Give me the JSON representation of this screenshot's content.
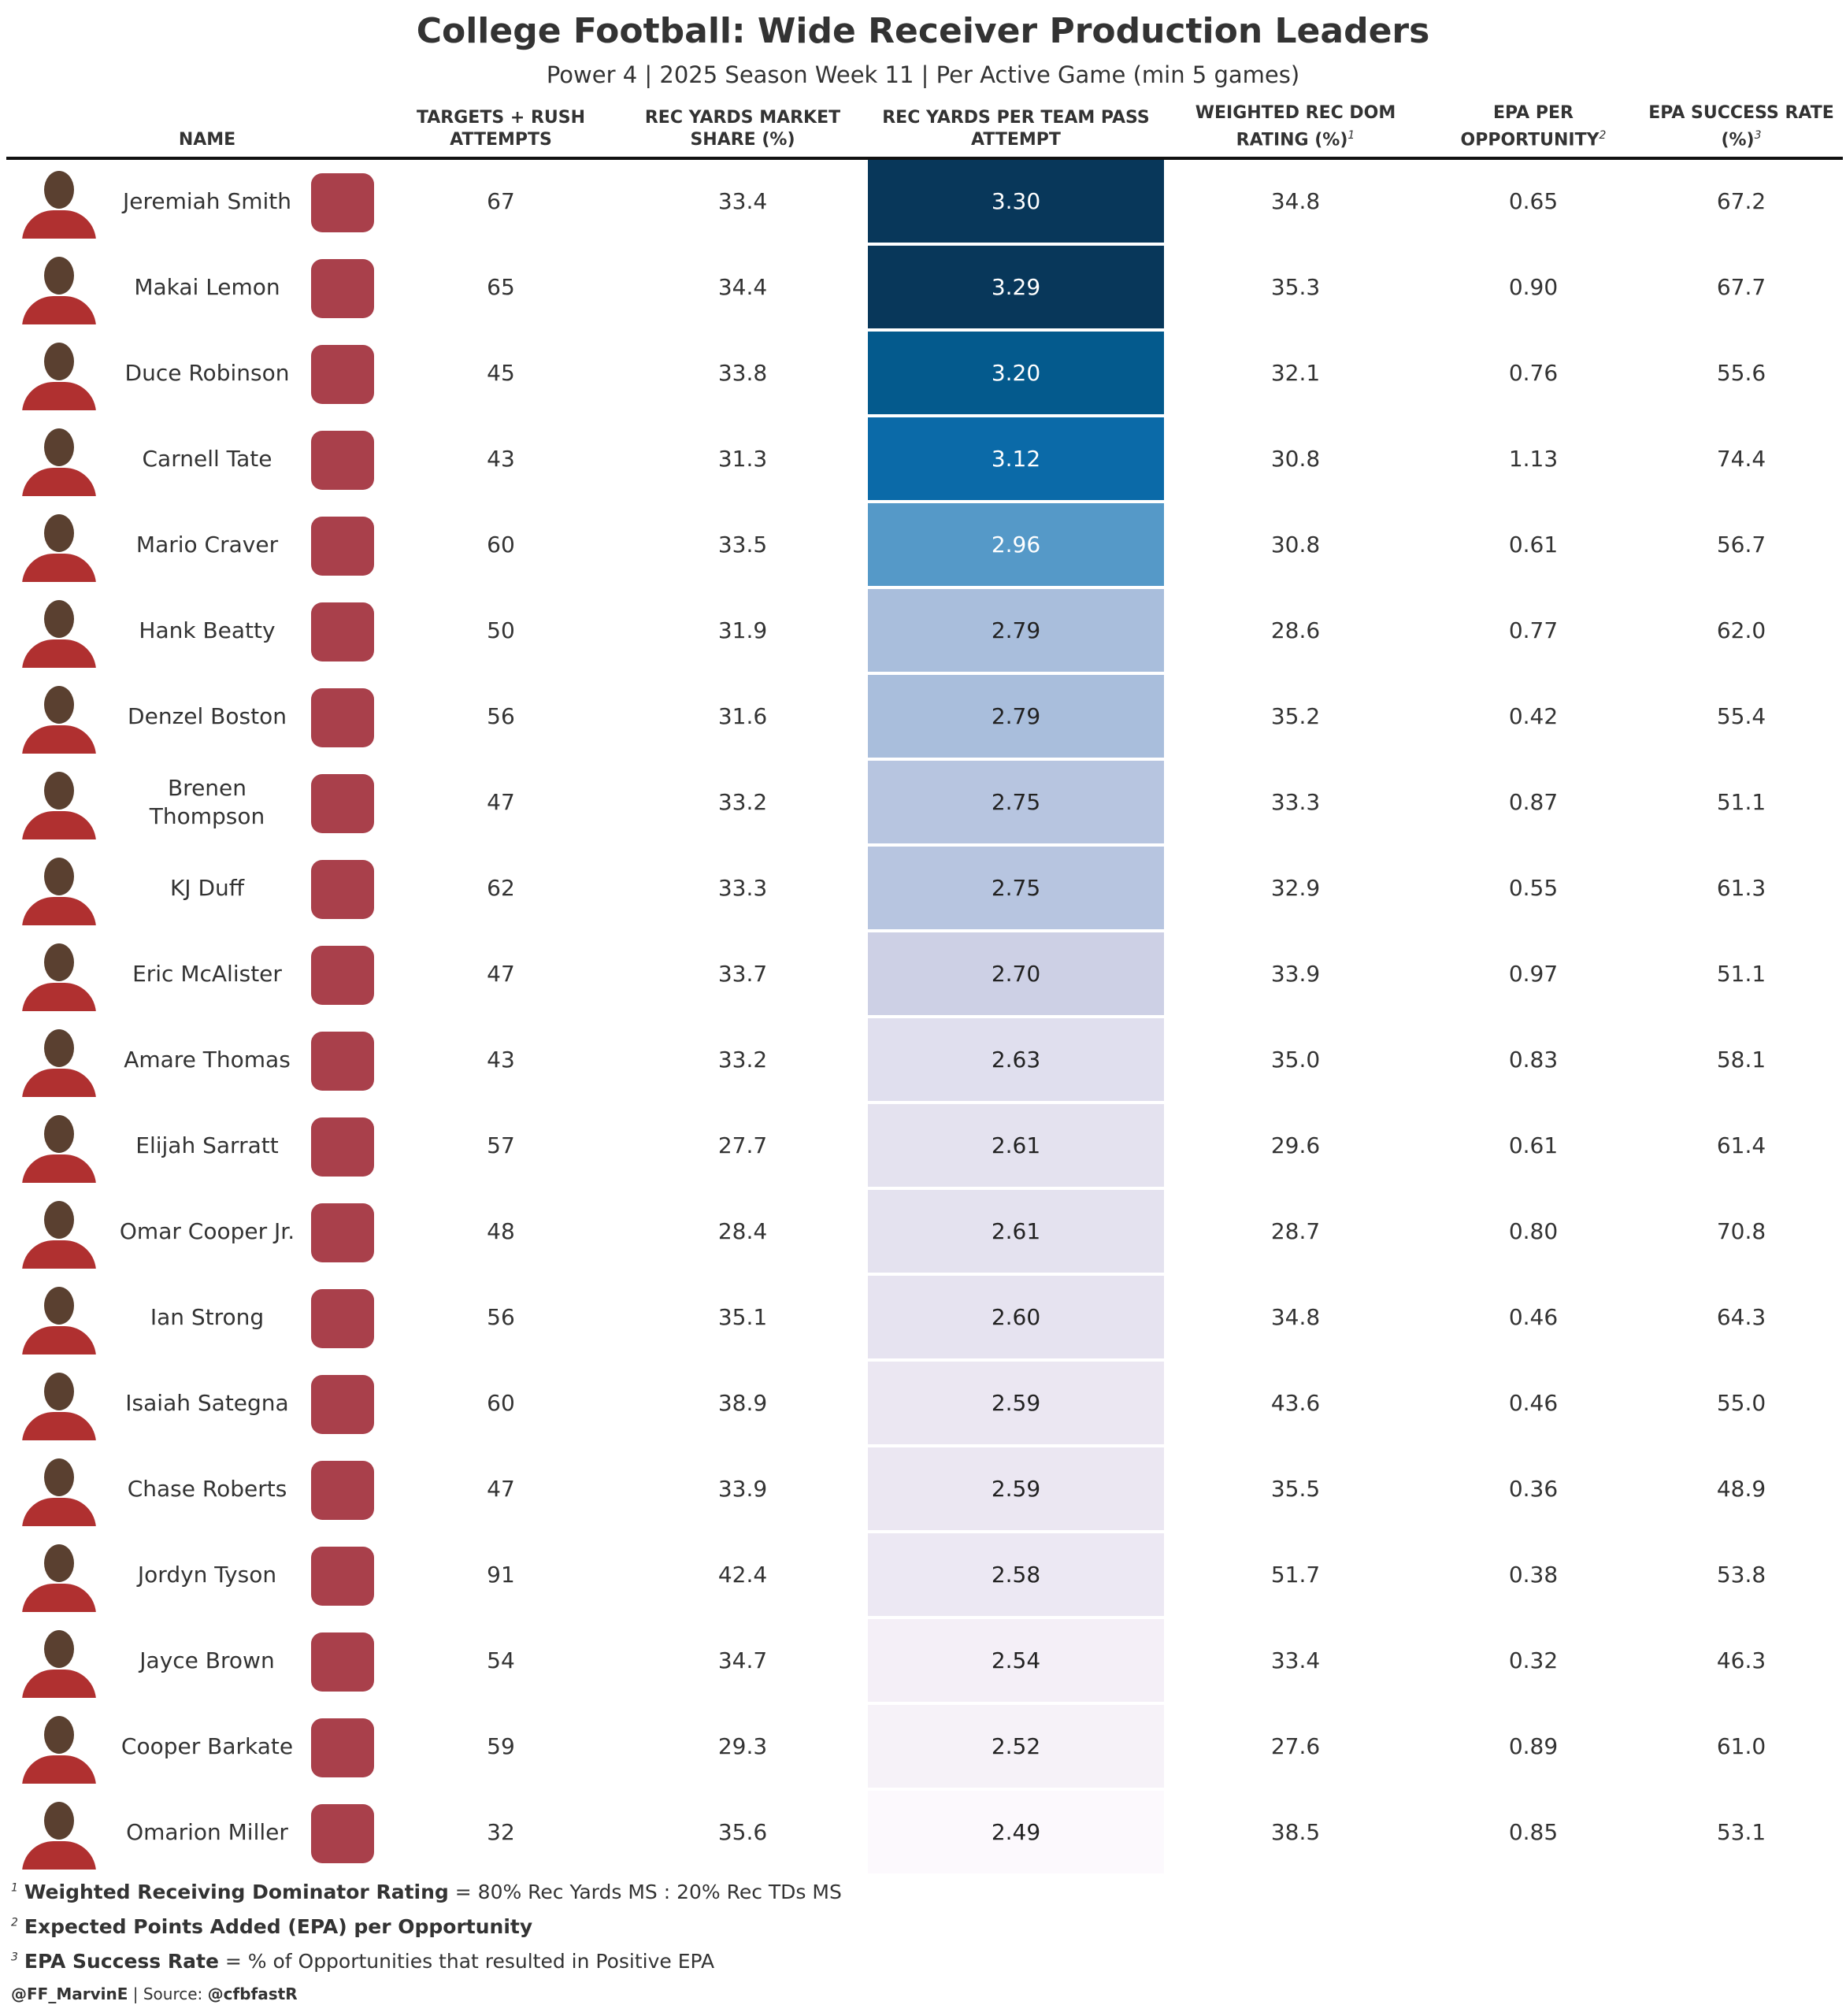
{
  "header": {
    "title": "College Football: Wide Receiver Production Leaders",
    "subtitle": "Power 4 | 2025 Season Week 11 | Per Active Game (min 5 games)"
  },
  "table": {
    "columns": [
      {
        "label": "NAME"
      },
      {
        "label": "TARGETS + RUSH ATTEMPTS"
      },
      {
        "label": "REC YARDS MARKET SHARE (%)"
      },
      {
        "label": "REC YARDS PER TEAM PASS ATTEMPT"
      },
      {
        "label": "WEIGHTED REC DOM RATING (%)",
        "note": "1"
      },
      {
        "label": "EPA PER OPPORTUNITY",
        "note": "2"
      },
      {
        "label": "EPA SUCCESS RATE (%)",
        "note": "3"
      }
    ],
    "rows": [
      [
        "Jeremiah Smith",
        "67",
        "33.4",
        "3.30",
        "34.8",
        "0.65",
        "67.2"
      ],
      [
        "Makai Lemon",
        "65",
        "34.4",
        "3.29",
        "35.3",
        "0.90",
        "67.7"
      ],
      [
        "Duce Robinson",
        "45",
        "33.8",
        "3.20",
        "32.1",
        "0.76",
        "55.6"
      ],
      [
        "Carnell Tate",
        "43",
        "31.3",
        "3.12",
        "30.8",
        "1.13",
        "74.4"
      ],
      [
        "Mario Craver",
        "60",
        "33.5",
        "2.96",
        "30.8",
        "0.61",
        "56.7"
      ],
      [
        "Hank Beatty",
        "50",
        "31.9",
        "2.79",
        "28.6",
        "0.77",
        "62.0"
      ],
      [
        "Denzel Boston",
        "56",
        "31.6",
        "2.79",
        "35.2",
        "0.42",
        "55.4"
      ],
      [
        "Brenen Thompson",
        "47",
        "33.2",
        "2.75",
        "33.3",
        "0.87",
        "51.1"
      ],
      [
        "KJ Duff",
        "62",
        "33.3",
        "2.75",
        "32.9",
        "0.55",
        "61.3"
      ],
      [
        "Eric McAlister",
        "47",
        "33.7",
        "2.70",
        "33.9",
        "0.97",
        "51.1"
      ],
      [
        "Amare Thomas",
        "43",
        "33.2",
        "2.63",
        "35.0",
        "0.83",
        "58.1"
      ],
      [
        "Elijah Sarratt",
        "57",
        "27.7",
        "2.61",
        "29.6",
        "0.61",
        "61.4"
      ],
      [
        "Omar Cooper Jr.",
        "48",
        "28.4",
        "2.61",
        "28.7",
        "0.80",
        "70.8"
      ],
      [
        "Ian Strong",
        "56",
        "35.1",
        "2.60",
        "34.8",
        "0.46",
        "64.3"
      ],
      [
        "Isaiah Sategna",
        "60",
        "38.9",
        "2.59",
        "43.6",
        "0.46",
        "55.0"
      ],
      [
        "Chase Roberts",
        "47",
        "33.9",
        "2.59",
        "35.5",
        "0.36",
        "48.9"
      ],
      [
        "Jordyn Tyson",
        "91",
        "42.4",
        "2.58",
        "51.7",
        "0.38",
        "53.8"
      ],
      [
        "Jayce Brown",
        "54",
        "34.7",
        "2.54",
        "33.4",
        "0.32",
        "46.3"
      ],
      [
        "Cooper Barkate",
        "59",
        "29.3",
        "2.52",
        "27.6",
        "0.89",
        "61.0"
      ],
      [
        "Omarion Miller",
        "32",
        "35.6",
        "2.49",
        "38.5",
        "0.85",
        "53.1"
      ]
    ],
    "heat": {
      "column": 3,
      "colors": [
        "#08375a",
        "#08375a",
        "#045a8d",
        "#0b6aa8",
        "#5599c8",
        "#a9bedc",
        "#a9bedc",
        "#b7c5e0",
        "#b7c5e0",
        "#cdd0e5",
        "#e0dfee",
        "#e4e2ef",
        "#e4e2ef",
        "#e6e3f0",
        "#ebe7f2",
        "#ebe7f2",
        "#ece8f3",
        "#f4eff7",
        "#f6f2f8",
        "#fcf9fd"
      ]
    }
  },
  "footnotes": [
    {
      "mark": "1",
      "term": "Weighted Receiving Dominator Rating",
      "text": "= 80% Rec Yards MS : 20% Rec TDs MS"
    },
    {
      "mark": "2",
      "term": "Expected Points Added (EPA) per Opportunity"
    },
    {
      "mark": "3",
      "term": "EPA Success Rate",
      "text": "= % of Opportunities that resulted in Positive EPA"
    }
  ],
  "credit": {
    "author": "@FF_MarvinE",
    "separator": "|",
    "source_label": "Source:",
    "source": "@cfbfastR"
  }
}
